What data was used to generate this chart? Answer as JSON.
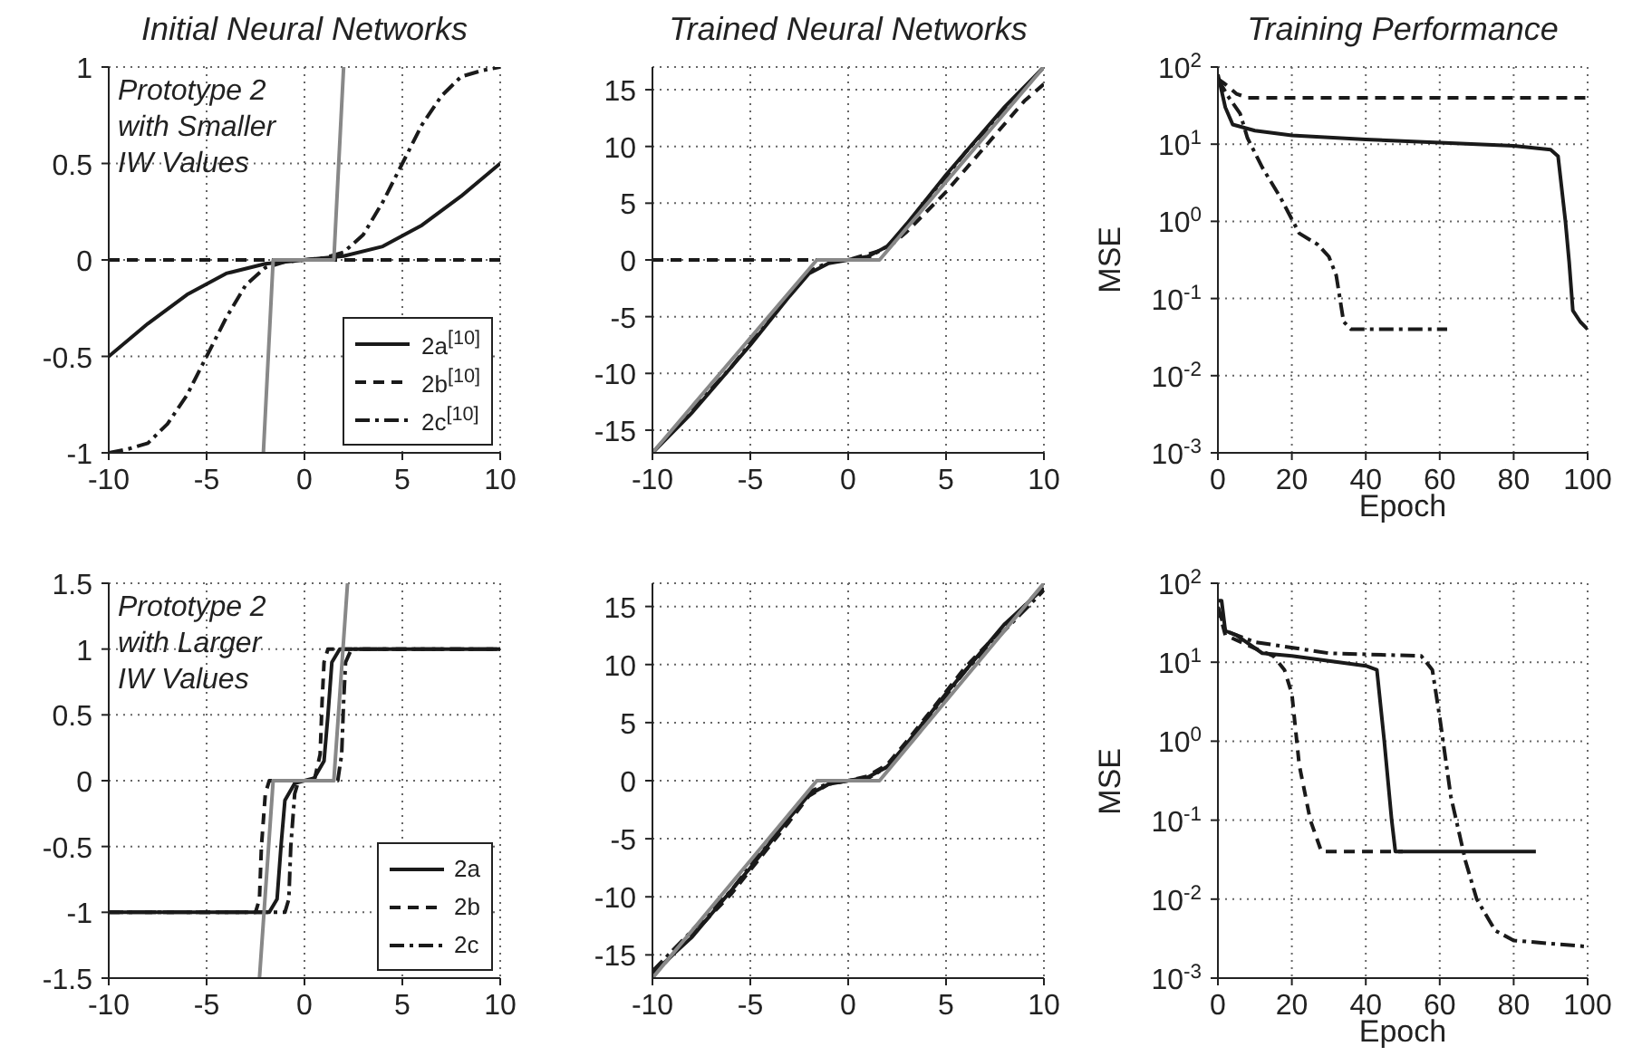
{
  "chart_data": [
    {
      "type": "line",
      "title": "Initial Neural Networks",
      "annotations": [
        "Prototype 2 with Smaller IW Values"
      ],
      "xlim": [
        -10,
        10
      ],
      "xticks": [
        -10,
        -5,
        0,
        5,
        10
      ],
      "ylim": [
        -1,
        1
      ],
      "yticks": [
        -1,
        -0.5,
        0,
        0.5,
        1
      ],
      "grid": true,
      "legend": "bottom right",
      "series": [
        {
          "name": "2a$^{[10]}$",
          "color": "#1a1a1a",
          "line_style": "solid",
          "x": [
            -10,
            -8,
            -6,
            -4,
            -2,
            0,
            2,
            4,
            6,
            8,
            10
          ],
          "values": [
            -0.5,
            -0.33,
            -0.18,
            -0.07,
            -0.02,
            0,
            0.02,
            0.07,
            0.18,
            0.33,
            0.5
          ]
        },
        {
          "name": "2b$^{[10]}$",
          "color": "#1a1a1a",
          "line_style": "dashed",
          "x": [
            -10,
            10
          ],
          "values": [
            0,
            0
          ]
        },
        {
          "name": "2c$^{[10]}$",
          "color": "#1a1a1a",
          "line_style": "dashdot",
          "x": [
            -10,
            -9,
            -8,
            -7,
            -6,
            -5,
            -4,
            -3,
            -2,
            -1,
            0,
            1,
            2,
            3,
            4,
            5,
            6,
            7,
            8,
            9,
            10
          ],
          "values": [
            -1,
            -0.98,
            -0.95,
            -0.85,
            -0.7,
            -0.5,
            -0.3,
            -0.13,
            -0.04,
            -0.01,
            0,
            0.01,
            0.04,
            0.13,
            0.3,
            0.5,
            0.7,
            0.85,
            0.95,
            0.98,
            1
          ]
        },
        {
          "color": "#888888",
          "line_style": "solid",
          "x": [
            -2.1,
            -1.6,
            1.5,
            2.0
          ],
          "values": [
            -1,
            0,
            0,
            1
          ]
        }
      ]
    },
    {
      "type": "line",
      "title": "Trained Neural Networks",
      "xlim": [
        -10,
        10
      ],
      "xticks": [
        -10,
        -5,
        0,
        5,
        10
      ],
      "ylim": [
        -17,
        17
      ],
      "yticks": [
        -15,
        -10,
        -5,
        0,
        5,
        10,
        15
      ],
      "grid": true,
      "series": [
        {
          "color": "#1a1a1a",
          "line_style": "solid",
          "x": [
            -10,
            -8,
            -5,
            -3,
            -2,
            -1,
            0,
            1,
            2,
            3,
            5,
            8,
            10
          ],
          "values": [
            -17,
            -13.5,
            -7.5,
            -3.2,
            -1.2,
            -0.3,
            0,
            0.3,
            1.2,
            3.2,
            7.5,
            13.5,
            17
          ]
        },
        {
          "color": "#1a1a1a",
          "line_style": "dashed",
          "x": [
            -10,
            -2,
            -1,
            0,
            1,
            2,
            3,
            5,
            7,
            9,
            10
          ],
          "values": [
            0,
            0,
            0,
            0,
            0.5,
            1,
            2.5,
            6,
            10,
            14,
            15.5
          ]
        },
        {
          "color": "#1a1a1a",
          "line_style": "dashdot",
          "x": [
            -10,
            -6,
            -3,
            -2,
            -1,
            0,
            1,
            2,
            3,
            6,
            10
          ],
          "values": [
            -17,
            -9.5,
            -3,
            -1,
            -0.2,
            0,
            0.2,
            1.2,
            3,
            9.5,
            17
          ]
        },
        {
          "color": "#888888",
          "line_style": "solid",
          "x": [
            -10,
            -1.6,
            1.6,
            10
          ],
          "values": [
            -17,
            0,
            0,
            17
          ]
        }
      ]
    },
    {
      "type": "line",
      "title": "Training Performance",
      "xlabel": "Epoch",
      "ylabel": "MSE",
      "log": "y",
      "xlim": [
        0,
        100
      ],
      "xticks": [
        0,
        20,
        40,
        60,
        80,
        100
      ],
      "ylim": [
        0.001,
        100
      ],
      "yticks": [
        {
          "value": 0.001,
          "label": "10$^{-3}$"
        },
        {
          "value": 0.01,
          "label": "10$^{-2}$"
        },
        {
          "value": 0.1,
          "label": "10$^{-1}$"
        },
        {
          "value": 1,
          "label": "10$^{0}$"
        },
        {
          "value": 10,
          "label": "10$^{1}$"
        },
        {
          "value": 100,
          "label": "10$^{2}$"
        }
      ],
      "grid": true,
      "series": [
        {
          "color": "#1a1a1a",
          "line_style": "solid",
          "x": [
            0,
            2,
            4,
            10,
            20,
            40,
            60,
            80,
            90,
            92,
            94,
            95,
            96,
            98,
            100
          ],
          "values": [
            80,
            30,
            18,
            15,
            13,
            11.5,
            10.5,
            9.5,
            8.5,
            7,
            1,
            0.3,
            0.07,
            0.05,
            0.04
          ]
        },
        {
          "color": "#1a1a1a",
          "line_style": "dashed",
          "x": [
            0,
            2,
            5,
            8,
            100
          ],
          "values": [
            70,
            60,
            45,
            40,
            40
          ]
        },
        {
          "color": "#1a1a1a",
          "line_style": "dashdot",
          "x": [
            0,
            3,
            6,
            8,
            12,
            17,
            22,
            27,
            30,
            32,
            34,
            36,
            62
          ],
          "values": [
            70,
            40,
            25,
            12,
            5,
            2,
            0.7,
            0.5,
            0.35,
            0.2,
            0.05,
            0.04,
            0.04
          ]
        }
      ]
    },
    {
      "type": "line",
      "annotations": [
        "Prototype 2 with Larger IW Values"
      ],
      "xlim": [
        -10,
        10
      ],
      "xticks": [
        -10,
        -5,
        0,
        5,
        10
      ],
      "ylim": [
        -1.5,
        1.5
      ],
      "yticks": [
        -1.5,
        -1,
        -0.5,
        0,
        0.5,
        1,
        1.5
      ],
      "grid": true,
      "legend": "bottom right",
      "series": [
        {
          "name": "2a",
          "color": "#1a1a1a",
          "line_style": "solid",
          "x": [
            -10,
            -1.8,
            -1.4,
            -1.2,
            -1,
            -0.5,
            0,
            0.5,
            1,
            1.2,
            1.4,
            1.8,
            10
          ],
          "values": [
            -1,
            -1,
            -0.9,
            -0.5,
            -0.15,
            -0.02,
            0,
            0.02,
            0.15,
            0.5,
            0.9,
            1,
            1
          ]
        },
        {
          "name": "2b",
          "color": "#1a1a1a",
          "line_style": "dashed",
          "x": [
            -10,
            -2.5,
            -2.3,
            -2.2,
            -2,
            -1.8,
            0.5,
            0.8,
            0.9,
            1,
            1.2,
            10
          ],
          "values": [
            -1,
            -1,
            -0.9,
            -0.5,
            -0.1,
            0,
            0,
            0.2,
            0.6,
            0.9,
            1,
            1
          ]
        },
        {
          "name": "2c",
          "color": "#1a1a1a",
          "line_style": "dashdot",
          "x": [
            -10,
            -1,
            -0.8,
            -0.7,
            -0.5,
            -0.3,
            1.7,
            1.9,
            2,
            2.1,
            2.4,
            10
          ],
          "values": [
            -1,
            -1,
            -0.9,
            -0.5,
            -0.1,
            0,
            0,
            0.2,
            0.6,
            0.9,
            1,
            1
          ]
        },
        {
          "color": "#888888",
          "line_style": "solid",
          "x": [
            -2.3,
            -1.6,
            1.5,
            2.2
          ],
          "values": [
            -1.5,
            0,
            0,
            1.5
          ]
        }
      ]
    },
    {
      "type": "line",
      "xlim": [
        -10,
        10
      ],
      "xticks": [
        -10,
        -5,
        0,
        5,
        10
      ],
      "ylim": [
        -17,
        17
      ],
      "yticks": [
        -15,
        -10,
        -5,
        0,
        5,
        10,
        15
      ],
      "grid": true,
      "series": [
        {
          "color": "#1a1a1a",
          "line_style": "solid",
          "x": [
            -10,
            -8,
            -5,
            -3,
            -2,
            -1,
            0,
            1,
            2,
            3,
            5,
            8,
            10
          ],
          "values": [
            -16.6,
            -13.5,
            -7.5,
            -3.2,
            -1.2,
            -0.3,
            0,
            0.3,
            1.2,
            3.2,
            7.5,
            13.5,
            16.6
          ]
        },
        {
          "color": "#1a1a1a",
          "line_style": "dashed",
          "x": [
            -10,
            -6,
            -3,
            -2,
            -1,
            0,
            1,
            2,
            3,
            6,
            10
          ],
          "values": [
            -16.8,
            -9.8,
            -3.5,
            -1.3,
            -0.3,
            0,
            0.4,
            1.4,
            3.4,
            9.8,
            16.8
          ]
        },
        {
          "color": "#1a1a1a",
          "line_style": "dashdot",
          "x": [
            -10,
            -6,
            -3,
            -2,
            -1,
            0,
            1,
            2,
            3,
            6,
            10
          ],
          "values": [
            -16.4,
            -9.5,
            -3,
            -1,
            -0.2,
            0,
            0.2,
            1.2,
            3,
            9.5,
            16.4
          ]
        },
        {
          "color": "#888888",
          "line_style": "solid",
          "x": [
            -10,
            -1.6,
            1.6,
            10
          ],
          "values": [
            -17,
            0,
            0,
            17
          ]
        }
      ]
    },
    {
      "type": "line",
      "xlabel": "Epoch",
      "ylabel": "MSE",
      "log": "y",
      "xlim": [
        0,
        100
      ],
      "xticks": [
        0,
        20,
        40,
        60,
        80,
        100
      ],
      "ylim": [
        0.001,
        100
      ],
      "yticks": [
        {
          "value": 0.001,
          "label": "10$^{-3}$"
        },
        {
          "value": 0.01,
          "label": "10$^{-2}$"
        },
        {
          "value": 0.1,
          "label": "10$^{-1}$"
        },
        {
          "value": 1,
          "label": "10$^{0}$"
        },
        {
          "value": 10,
          "label": "10$^{1}$"
        },
        {
          "value": 100,
          "label": "10$^{2}$"
        }
      ],
      "grid": true,
      "series": [
        {
          "color": "#1a1a1a",
          "line_style": "solid",
          "x": [
            0,
            1,
            2,
            5,
            12,
            20,
            40,
            43,
            45,
            47,
            48,
            86
          ],
          "values": [
            60,
            60,
            25,
            22,
            13,
            12,
            9,
            8,
            1,
            0.1,
            0.04,
            0.04
          ]
        },
        {
          "color": "#1a1a1a",
          "line_style": "dashed",
          "x": [
            0,
            2,
            10,
            15,
            18,
            20,
            22,
            25,
            28,
            50
          ],
          "values": [
            50,
            22,
            15,
            12,
            8,
            4,
            0.5,
            0.1,
            0.04,
            0.04
          ]
        },
        {
          "color": "#1a1a1a",
          "line_style": "dashdot",
          "x": [
            0,
            2,
            10,
            30,
            55,
            58,
            60,
            63,
            67,
            70,
            75,
            80,
            100
          ],
          "values": [
            50,
            25,
            18,
            13,
            12,
            8,
            2,
            0.2,
            0.03,
            0.01,
            0.004,
            0.003,
            0.0025
          ]
        }
      ]
    }
  ]
}
